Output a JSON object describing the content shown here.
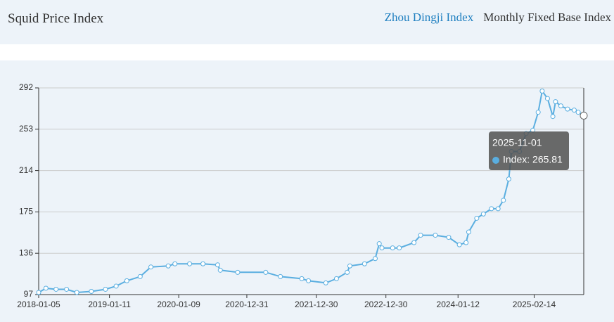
{
  "header": {
    "title": "Squid Price Index",
    "tabs": [
      "Zhou Dingji Index",
      "Monthly Fixed Base Index"
    ],
    "active_tab": 0
  },
  "chart_data": {
    "type": "line",
    "x": [
      "2018-01-05",
      "2018-02-12",
      "2018-04-06",
      "2018-05-31",
      "2018-07-24",
      "2018-10-08",
      "2018-12-21",
      "2019-02-15",
      "2019-04-12",
      "2019-06-21",
      "2019-08-16",
      "2019-11-15",
      "2019-12-20",
      "2020-03-06",
      "2020-05-15",
      "2020-07-31",
      "2020-08-14",
      "2020-11-13",
      "2021-04-09",
      "2021-06-25",
      "2021-10-15",
      "2021-11-19",
      "2022-02-18",
      "2022-04-15",
      "2022-06-10",
      "2022-06-24",
      "2022-09-09",
      "2022-11-04",
      "2022-11-25",
      "2022-12-09",
      "2023-02-03",
      "2023-03-10",
      "2023-05-26",
      "2023-06-30",
      "2023-09-15",
      "2023-11-24",
      "2024-01-19",
      "2024-02-23",
      "2024-03-08",
      "2024-04-19",
      "2024-05-24",
      "2024-07-05",
      "2024-08-09",
      "2024-09-06",
      "2024-10-04",
      "2024-10-18",
      "2024-11-29",
      "2025-01-03",
      "2025-02-07",
      "2025-03-07",
      "2025-03-28",
      "2025-04-25",
      "2025-05-23",
      "2025-06-06",
      "2025-07-04",
      "2025-08-08",
      "2025-09-12",
      "2025-10-03",
      "2025-11-01"
    ],
    "series": [
      {
        "name": "Index",
        "color": "#5aaee0",
        "values": [
          99,
          103,
          102,
          102,
          99,
          100,
          102,
          105,
          110,
          114,
          123,
          124,
          126,
          126,
          126,
          125,
          120,
          118,
          118,
          114,
          112,
          110,
          108,
          112,
          118,
          124,
          126,
          131,
          145,
          141,
          141,
          141,
          146,
          153,
          153,
          151,
          144,
          146,
          156,
          169,
          173,
          178,
          178,
          186,
          206,
          232,
          232,
          249,
          252,
          269,
          289,
          282,
          265,
          279,
          275,
          272,
          271,
          269,
          265.81
        ]
      }
    ],
    "xlim": [
      "2018-01-05",
      "2025-11-01"
    ],
    "xticks": [
      "2018-01-05",
      "2019-01-11",
      "2020-01-09",
      "2020-12-31",
      "2021-12-30",
      "2022-12-30",
      "2024-01-12",
      "2025-02-14"
    ],
    "ylim": [
      97,
      292
    ],
    "yticks": [
      97,
      136,
      175,
      214,
      253,
      292
    ],
    "grid": true,
    "tooltip": {
      "title": "2025-11-01",
      "text": "Index: 265.81"
    }
  }
}
